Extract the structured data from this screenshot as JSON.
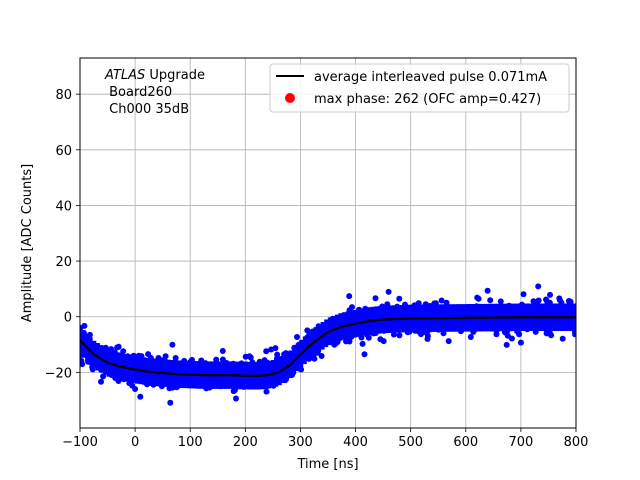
{
  "chart_data": {
    "type": "scatter",
    "xlabel": "Time [ns]",
    "ylabel": "Amplitude [ADC Counts]",
    "xlim": [
      -100,
      800
    ],
    "ylim": [
      -40,
      93
    ],
    "xticks": [
      -100,
      0,
      100,
      200,
      300,
      400,
      500,
      600,
      700,
      800
    ],
    "yticks": [
      -20,
      0,
      20,
      40,
      60,
      80
    ],
    "grid": true,
    "legend_position": "top-right",
    "annotation": {
      "italic": "ATLAS",
      "rest": " Upgrade",
      "line2": " Board260",
      "line3": " Ch000 35dB"
    },
    "series": [
      {
        "name": "average interleaved pulse 0.071mA",
        "kind": "line",
        "color": "#000000",
        "x": [
          -100,
          -75,
          -50,
          -25,
          0,
          25,
          50,
          75,
          100,
          125,
          150,
          175,
          200,
          225,
          240,
          260,
          280,
          300,
          325,
          350,
          375,
          400,
          425,
          450,
          475,
          500,
          550,
          600,
          650,
          700,
          750,
          800
        ],
        "y": [
          -8.5,
          -13.5,
          -16.5,
          -18,
          -19,
          -19.8,
          -20.2,
          -20.6,
          -20.8,
          -21,
          -21,
          -21,
          -21.2,
          -21.2,
          -21,
          -20,
          -17.5,
          -13.5,
          -9,
          -5.5,
          -3.5,
          -2.5,
          -1.5,
          -1,
          -0.8,
          -0.6,
          -0.5,
          -0.4,
          -0.3,
          -0.2,
          -0.2,
          -0.2
        ]
      },
      {
        "name": "max phase: 262 (OFC amp=0.427)",
        "kind": "point",
        "color": "#ff0000",
        "x": [],
        "y": []
      },
      {
        "name": "",
        "kind": "scatter-band",
        "color": "#0000ff",
        "spread": 5.5,
        "outlier_spread": 12
      }
    ]
  }
}
